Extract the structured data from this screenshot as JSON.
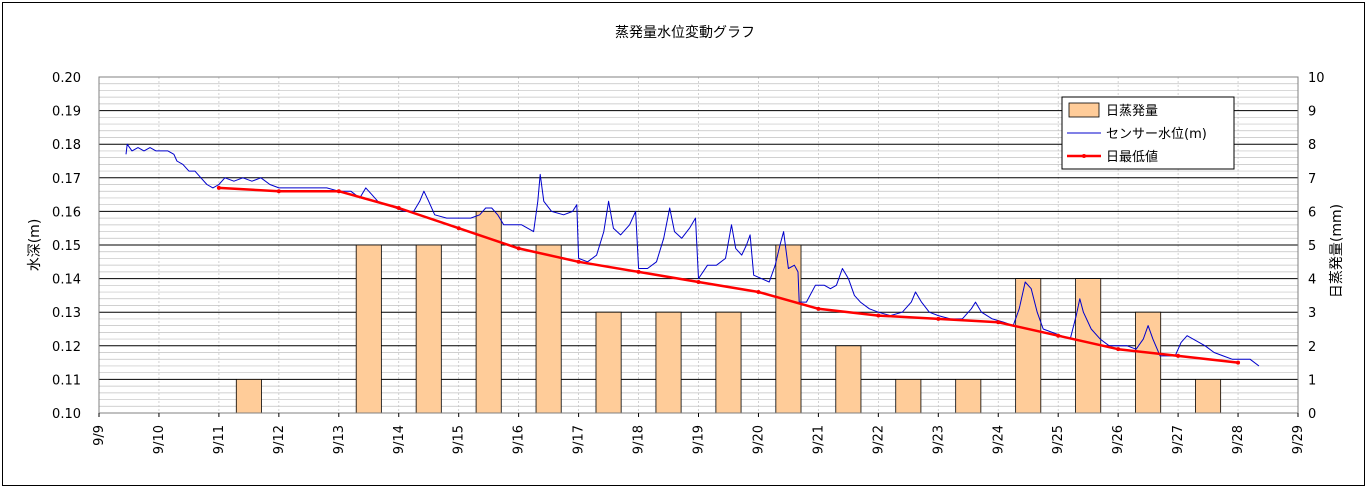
{
  "chart_data": {
    "type": "bar",
    "title": "蒸発量水位変動グラフ",
    "ylabel": "水深(m)",
    "y2label": "日蒸発量(mm)",
    "x_ticks": [
      "9/9",
      "9/10",
      "9/11",
      "9/12",
      "9/13",
      "9/14",
      "9/15",
      "9/16",
      "9/17",
      "9/18",
      "9/19",
      "9/20",
      "9/21",
      "9/22",
      "9/23",
      "9/24",
      "9/25",
      "9/26",
      "9/27",
      "9/28",
      "9/29"
    ],
    "ylim": [
      0.1,
      0.2
    ],
    "y_ticks": [
      "0.10",
      "0.11",
      "0.12",
      "0.13",
      "0.14",
      "0.15",
      "0.16",
      "0.17",
      "0.18",
      "0.19",
      "0.20"
    ],
    "y2lim": [
      0,
      10
    ],
    "y2_ticks": [
      "0",
      "1",
      "2",
      "3",
      "4",
      "5",
      "6",
      "7",
      "8",
      "9",
      "10"
    ],
    "legend": {
      "position": "top-right",
      "items": [
        "日蒸発量",
        "センサー水位(m)",
        "日最低値"
      ]
    },
    "grid": true,
    "colors": {
      "bar": "#FFCC99",
      "sensor": "#0000CC",
      "daily_min": "#FF0000",
      "plot_bg": "#ffffff"
    },
    "series": [
      {
        "name": "日蒸発量",
        "type": "bar",
        "axis": "right",
        "x": [
          "9/11",
          "9/12",
          "9/13",
          "9/14",
          "9/15",
          "9/16",
          "9/17",
          "9/18",
          "9/19",
          "9/20",
          "9/21",
          "9/22",
          "9/23",
          "9/24",
          "9/25",
          "9/26",
          "9/27",
          "9/28"
        ],
        "values": [
          1,
          0,
          5,
          5,
          6,
          5,
          3,
          3,
          3,
          5,
          2,
          1,
          1,
          4,
          4,
          3,
          1,
          0
        ]
      },
      {
        "name": "センサー水位(m)",
        "type": "line",
        "axis": "left",
        "points": [
          [
            9.45,
            0.177
          ],
          [
            9.47,
            0.18
          ],
          [
            9.55,
            0.178
          ],
          [
            9.65,
            0.179
          ],
          [
            9.75,
            0.178
          ],
          [
            9.85,
            0.179
          ],
          [
            9.95,
            0.178
          ],
          [
            10.05,
            0.178
          ],
          [
            10.15,
            0.178
          ],
          [
            10.25,
            0.177
          ],
          [
            10.3,
            0.175
          ],
          [
            10.4,
            0.174
          ],
          [
            10.5,
            0.172
          ],
          [
            10.6,
            0.172
          ],
          [
            10.7,
            0.17
          ],
          [
            10.8,
            0.168
          ],
          [
            10.9,
            0.167
          ],
          [
            11.0,
            0.168
          ],
          [
            11.1,
            0.17
          ],
          [
            11.25,
            0.169
          ],
          [
            11.4,
            0.17
          ],
          [
            11.55,
            0.169
          ],
          [
            11.7,
            0.17
          ],
          [
            11.85,
            0.168
          ],
          [
            12.0,
            0.167
          ],
          [
            12.2,
            0.167
          ],
          [
            12.4,
            0.167
          ],
          [
            12.6,
            0.167
          ],
          [
            12.8,
            0.167
          ],
          [
            13.0,
            0.166
          ],
          [
            13.2,
            0.166
          ],
          [
            13.35,
            0.164
          ],
          [
            13.45,
            0.167
          ],
          [
            13.55,
            0.165
          ],
          [
            13.65,
            0.163
          ],
          [
            13.8,
            0.162
          ],
          [
            13.95,
            0.161
          ],
          [
            14.1,
            0.16
          ],
          [
            14.25,
            0.16
          ],
          [
            14.35,
            0.163
          ],
          [
            14.42,
            0.166
          ],
          [
            14.5,
            0.163
          ],
          [
            14.6,
            0.159
          ],
          [
            14.8,
            0.158
          ],
          [
            15.0,
            0.158
          ],
          [
            15.2,
            0.158
          ],
          [
            15.35,
            0.159
          ],
          [
            15.45,
            0.161
          ],
          [
            15.55,
            0.161
          ],
          [
            15.65,
            0.159
          ],
          [
            15.75,
            0.156
          ],
          [
            15.9,
            0.156
          ],
          [
            16.05,
            0.156
          ],
          [
            16.15,
            0.155
          ],
          [
            16.25,
            0.154
          ],
          [
            16.32,
            0.163
          ],
          [
            16.36,
            0.171
          ],
          [
            16.42,
            0.163
          ],
          [
            16.55,
            0.16
          ],
          [
            16.75,
            0.159
          ],
          [
            16.9,
            0.16
          ],
          [
            16.97,
            0.162
          ],
          [
            17.0,
            0.146
          ],
          [
            17.15,
            0.145
          ],
          [
            17.3,
            0.147
          ],
          [
            17.42,
            0.154
          ],
          [
            17.5,
            0.163
          ],
          [
            17.58,
            0.155
          ],
          [
            17.7,
            0.153
          ],
          [
            17.85,
            0.156
          ],
          [
            17.95,
            0.16
          ],
          [
            18.0,
            0.143
          ],
          [
            18.15,
            0.143
          ],
          [
            18.3,
            0.145
          ],
          [
            18.42,
            0.152
          ],
          [
            18.52,
            0.161
          ],
          [
            18.6,
            0.154
          ],
          [
            18.72,
            0.152
          ],
          [
            18.85,
            0.155
          ],
          [
            18.95,
            0.158
          ],
          [
            19.0,
            0.14
          ],
          [
            19.15,
            0.144
          ],
          [
            19.3,
            0.144
          ],
          [
            19.45,
            0.146
          ],
          [
            19.55,
            0.156
          ],
          [
            19.62,
            0.149
          ],
          [
            19.72,
            0.147
          ],
          [
            19.8,
            0.15
          ],
          [
            19.86,
            0.153
          ],
          [
            19.92,
            0.141
          ],
          [
            20.05,
            0.14
          ],
          [
            20.18,
            0.139
          ],
          [
            20.28,
            0.144
          ],
          [
            20.36,
            0.15
          ],
          [
            20.42,
            0.154
          ],
          [
            20.5,
            0.143
          ],
          [
            20.6,
            0.144
          ],
          [
            20.66,
            0.142
          ],
          [
            20.68,
            0.133
          ],
          [
            20.8,
            0.133
          ],
          [
            20.95,
            0.138
          ],
          [
            21.1,
            0.138
          ],
          [
            21.2,
            0.137
          ],
          [
            21.3,
            0.138
          ],
          [
            21.4,
            0.143
          ],
          [
            21.5,
            0.14
          ],
          [
            21.6,
            0.135
          ],
          [
            21.7,
            0.133
          ],
          [
            21.85,
            0.131
          ],
          [
            22.0,
            0.13
          ],
          [
            22.2,
            0.129
          ],
          [
            22.4,
            0.13
          ],
          [
            22.55,
            0.133
          ],
          [
            22.62,
            0.136
          ],
          [
            22.72,
            0.133
          ],
          [
            22.85,
            0.13
          ],
          [
            23.0,
            0.129
          ],
          [
            23.2,
            0.128
          ],
          [
            23.4,
            0.128
          ],
          [
            23.55,
            0.131
          ],
          [
            23.62,
            0.133
          ],
          [
            23.72,
            0.13
          ],
          [
            23.9,
            0.128
          ],
          [
            24.1,
            0.127
          ],
          [
            24.25,
            0.126
          ],
          [
            24.35,
            0.131
          ],
          [
            24.45,
            0.139
          ],
          [
            24.55,
            0.137
          ],
          [
            24.65,
            0.13
          ],
          [
            24.75,
            0.125
          ],
          [
            24.9,
            0.124
          ],
          [
            25.05,
            0.123
          ],
          [
            25.2,
            0.122
          ],
          [
            25.3,
            0.129
          ],
          [
            25.36,
            0.134
          ],
          [
            25.42,
            0.13
          ],
          [
            25.55,
            0.125
          ],
          [
            25.7,
            0.122
          ],
          [
            25.85,
            0.12
          ],
          [
            26.0,
            0.12
          ],
          [
            26.15,
            0.12
          ],
          [
            26.3,
            0.119
          ],
          [
            26.42,
            0.122
          ],
          [
            26.5,
            0.126
          ],
          [
            26.58,
            0.122
          ],
          [
            26.7,
            0.117
          ],
          [
            26.85,
            0.117
          ],
          [
            26.95,
            0.117
          ],
          [
            27.05,
            0.121
          ],
          [
            27.15,
            0.123
          ],
          [
            27.25,
            0.122
          ],
          [
            27.35,
            0.121
          ],
          [
            27.45,
            0.12
          ],
          [
            27.6,
            0.118
          ],
          [
            27.75,
            0.117
          ],
          [
            27.9,
            0.116
          ],
          [
            28.05,
            0.116
          ],
          [
            28.2,
            0.116
          ],
          [
            28.35,
            0.114
          ]
        ]
      },
      {
        "name": "日最低値",
        "type": "line",
        "axis": "left",
        "points": [
          [
            11.0,
            0.167
          ],
          [
            12.0,
            0.166
          ],
          [
            13.0,
            0.166
          ],
          [
            14.0,
            0.161
          ],
          [
            15.0,
            0.155
          ],
          [
            16.0,
            0.149
          ],
          [
            17.0,
            0.145
          ],
          [
            18.0,
            0.142
          ],
          [
            19.0,
            0.139
          ],
          [
            20.0,
            0.136
          ],
          [
            21.0,
            0.131
          ],
          [
            22.0,
            0.129
          ],
          [
            23.0,
            0.128
          ],
          [
            24.0,
            0.127
          ],
          [
            25.0,
            0.123
          ],
          [
            26.0,
            0.119
          ],
          [
            27.0,
            0.117
          ],
          [
            28.0,
            0.115
          ]
        ]
      }
    ]
  }
}
